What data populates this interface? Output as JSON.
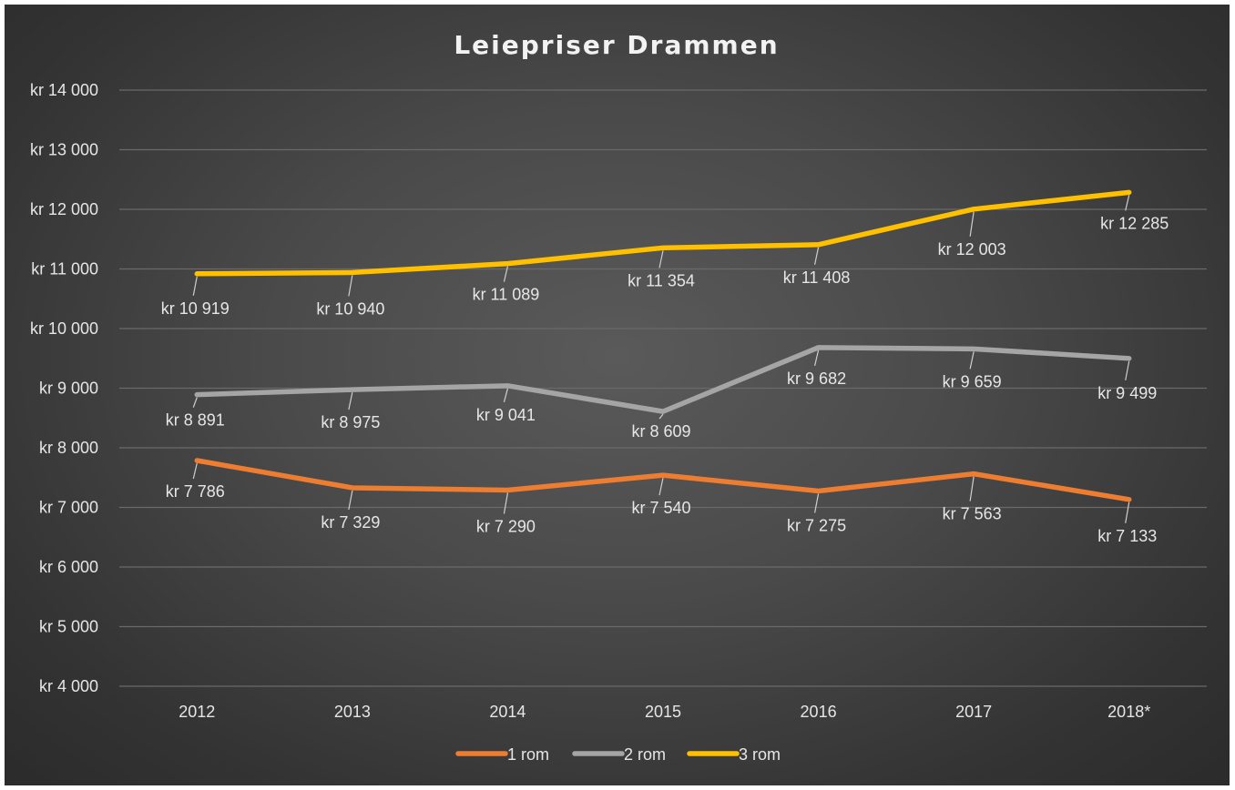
{
  "chart_data": {
    "type": "line",
    "title": "Leiepriser Drammen",
    "categories": [
      "2012",
      "2013",
      "2014",
      "2015",
      "2016",
      "2017",
      "2018*"
    ],
    "ylim": [
      4000,
      14000
    ],
    "yticks": [
      4000,
      5000,
      6000,
      7000,
      8000,
      9000,
      10000,
      11000,
      12000,
      13000,
      14000
    ],
    "ytick_labels": [
      "kr 4 000",
      "kr 5 000",
      "kr 6 000",
      "kr 7 000",
      "kr 8 000",
      "kr 9 000",
      "kr 10 000",
      "kr 11 000",
      "kr 12 000",
      "kr 13 000",
      "kr 14 000"
    ],
    "grid": true,
    "legend_position": "bottom",
    "series": [
      {
        "name": "1 rom",
        "color": "#ED7D31",
        "values": [
          7786,
          7329,
          7290,
          7540,
          7275,
          7563,
          7133
        ],
        "labels": [
          "kr 7 786",
          "kr 7 329",
          "kr 7 290",
          "kr 7 540",
          "kr 7 275",
          "kr 7 563",
          "kr 7 133"
        ]
      },
      {
        "name": "2 rom",
        "color": "#A5A5A5",
        "values": [
          8891,
          8975,
          9041,
          8609,
          9682,
          9659,
          9499
        ],
        "labels": [
          "kr 8 891",
          "kr 8 975",
          "kr 9 041",
          "kr 8 609",
          "kr 9 682",
          "kr 9 659",
          "kr 9 499"
        ]
      },
      {
        "name": "3 rom",
        "color": "#FFC000",
        "values": [
          10919,
          10940,
          11089,
          11354,
          11408,
          12003,
          12285
        ],
        "labels": [
          "kr 10 919",
          "kr 10 940",
          "kr 11 089",
          "kr 11 354",
          "kr 11 408",
          "kr 12 003",
          "kr 12 285"
        ]
      }
    ]
  }
}
